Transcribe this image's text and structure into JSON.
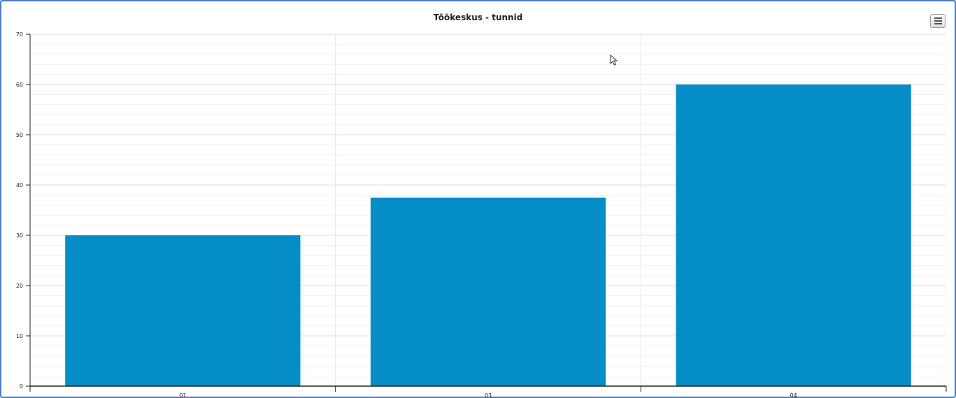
{
  "chart_data": {
    "type": "bar",
    "title": "Töökeskus - tunnid",
    "categories": [
      "01",
      "03",
      "04"
    ],
    "values": [
      30,
      37.5,
      60
    ],
    "ylim": [
      0,
      70
    ],
    "yticks": [
      0,
      10,
      20,
      30,
      40,
      50,
      60,
      70
    ],
    "xlabel": "",
    "ylabel": "",
    "grid": true,
    "bar_color": "#058dc7"
  },
  "toolbar": {
    "menu_icon": "hamburger-menu-icon"
  }
}
